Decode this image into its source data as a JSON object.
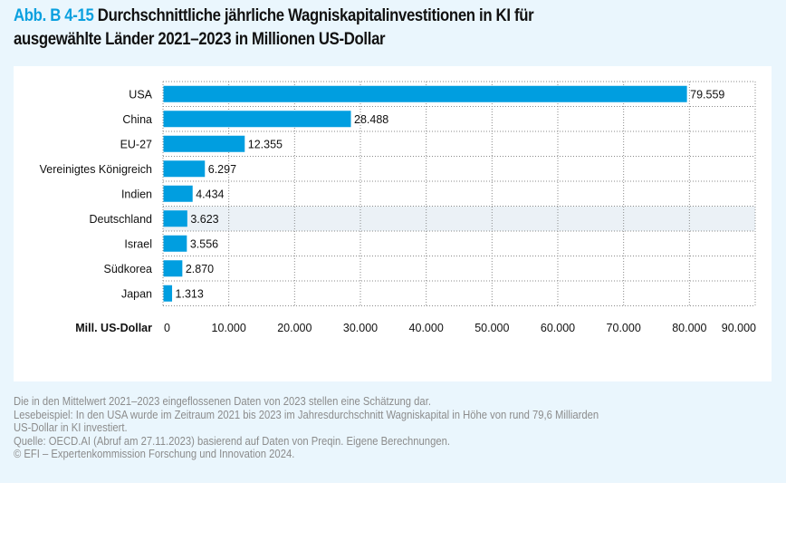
{
  "figure": {
    "id": "Abb. B 4-15",
    "title_line1": "Durchschnittliche jährliche Wagniskapitalinvestitionen in KI für",
    "title_line2": "ausgewählte Länder 2021–2023 in Millionen US-Dollar"
  },
  "colors": {
    "accent": "#0aa0df",
    "bar": "#009ee0",
    "highlight_row": "#ebf1f6",
    "panel_bg": "#eaf6fd",
    "grid": "#8a8a8a"
  },
  "chart_data": {
    "type": "bar",
    "orientation": "horizontal",
    "title": "Durchschnittliche jährliche Wagniskapitalinvestitionen in KI für ausgewählte Länder 2021–2023 in Millionen US-Dollar",
    "categories": [
      "USA",
      "China",
      "EU-27",
      "Vereinigtes Königreich",
      "Indien",
      "Deutschland",
      "Israel",
      "Südkorea",
      "Japan"
    ],
    "values": [
      79559,
      28488,
      12355,
      6297,
      4434,
      3623,
      3556,
      2870,
      1313
    ],
    "value_labels": [
      "79.559",
      "28.488",
      "12.355",
      "6.297",
      "4.434",
      "3.623",
      "3.556",
      "2.870",
      "1.313"
    ],
    "highlighted_category": "Deutschland",
    "xlabel": "Mill. US-Dollar",
    "ylabel": "",
    "xlim": [
      0,
      90000
    ],
    "xticks": [
      0,
      10000,
      20000,
      30000,
      40000,
      50000,
      60000,
      70000,
      80000,
      90000
    ],
    "xtick_labels": [
      "0",
      "10.000",
      "20.000",
      "30.000",
      "40.000",
      "50.000",
      "60.000",
      "70.000",
      "80.000",
      "90.000"
    ],
    "grid": true,
    "grid_style": "dotted",
    "legend": "none"
  },
  "footnotes": [
    "Die in den Mittelwert 2021–2023 eingeflossenen Daten von 2023 stellen eine Schätzung dar.",
    "Lesebeispiel: In den USA wurde im Zeitraum 2021 bis 2023 im Jahresdurchschnitt Wagniskapital in Höhe von rund 79,6 Milliarden",
    "US-Dollar in KI investiert.",
    "Quelle: OECD.AI (Abruf am 27.11.2023) basierend auf Daten von Preqin. Eigene Berechnungen.",
    "© EFI – Expertenkommission Forschung und Innovation 2024."
  ]
}
